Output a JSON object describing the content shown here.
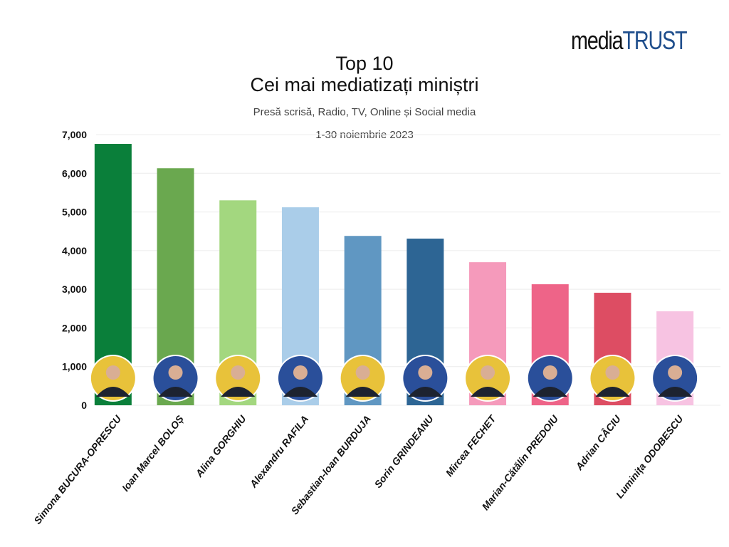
{
  "logo": {
    "part1": "media",
    "part2": "TRUST"
  },
  "chart_data": {
    "type": "bar",
    "title": "Top 10",
    "subtitle": "Cei mai mediatizați miniștri",
    "caption": "Presă scrisă, Radio, TV, Online și Social media",
    "period": "1-30 noiembrie 2023",
    "xlabel": "",
    "ylabel": "",
    "ylim": [
      0,
      7000
    ],
    "yticks": [
      0,
      1000,
      2000,
      3000,
      4000,
      5000,
      6000,
      7000
    ],
    "ytick_labels": [
      "0",
      "1,000",
      "2,000",
      "3,000",
      "4,000",
      "5,000",
      "6,000",
      "7,000"
    ],
    "grid": true,
    "categories": [
      "Simona BUCURA-OPRESCU",
      "Ioan Marcel BOLOȘ",
      "Alina GORGHIU",
      "Alexandru RAFILA",
      "Sebastian-Ioan BURDUJA",
      "Sorin GRINDEANU",
      "Mircea FECHET",
      "Marian-Cătălin PREDOIU",
      "Adrian CÂCIU",
      "Luminița ODOBESCU"
    ],
    "values": [
      6760,
      6130,
      5300,
      5120,
      4380,
      4310,
      3700,
      3130,
      2910,
      2430
    ],
    "colors": [
      "#0a7f3a",
      "#6aa84f",
      "#a3d77f",
      "#aacde9",
      "#6097c2",
      "#2d6594",
      "#f59abb",
      "#ee6488",
      "#dd4d63",
      "#f7c3e2"
    ]
  }
}
